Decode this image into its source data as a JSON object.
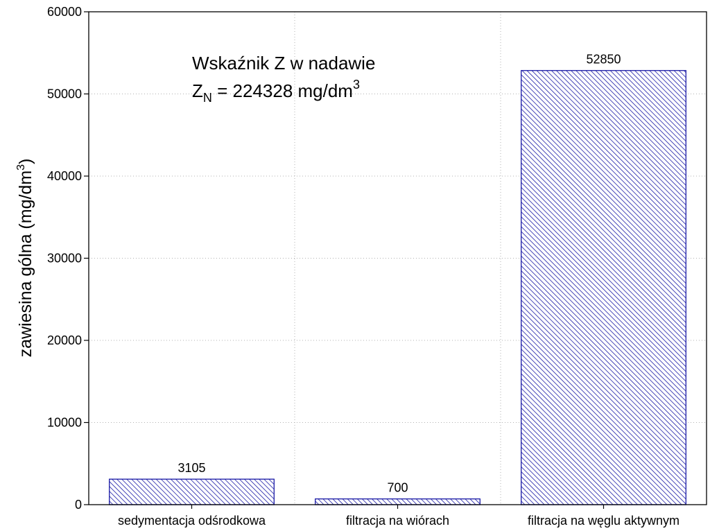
{
  "chart_data": {
    "type": "bar",
    "title": "",
    "xlabel": "",
    "ylabel": "zawiesina gólna (mg/dm",
    "ylabel_sup": "3",
    "ylabel_close": ")",
    "ylim": [
      0,
      60000
    ],
    "yticks": [
      0,
      10000,
      20000,
      30000,
      40000,
      50000,
      60000
    ],
    "ytick_labels": [
      "0",
      "10000",
      "20000",
      "30000",
      "40000",
      "50000",
      "60000"
    ],
    "categories": [
      "sedymentacja odśrodkowa",
      "filtracja na wiórach",
      "filtracja na węglu aktywnym"
    ],
    "values": [
      3105,
      700,
      52850
    ],
    "data_labels": [
      "3105",
      "700",
      "52850"
    ],
    "bar_fill": "hatched",
    "bar_color": "#1a1aa6",
    "grid": true,
    "annotation": {
      "line1": "Wskaźnik Z w nadawie",
      "line2_z": "Z",
      "line2_sub": "N",
      "line2_rest": " = 224328 mg/dm",
      "line2_sup": "3"
    }
  }
}
